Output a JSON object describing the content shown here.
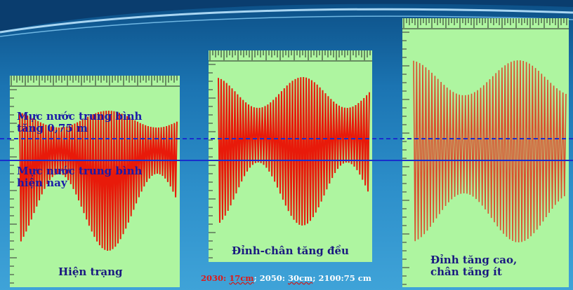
{
  "colors": {
    "background": "#1b74b2",
    "panel": "#aef5a0",
    "wave": "#e81a0a",
    "line": "#1a2ecc",
    "label": "#1a1aa8"
  },
  "panels": [
    {
      "caption": "Hiện trạng"
    },
    {
      "caption": "Đỉnh-chân tăng đều"
    },
    {
      "caption_line1": "Đỉnh tăng cao,",
      "caption_line2": "chân tăng ít"
    }
  ],
  "levels": {
    "raised_line1": "Mực nước trung bình",
    "raised_line2": "tăng 0,75 m",
    "current_line1": "Mực nước trung bình",
    "current_line2": "hiện nay"
  },
  "footer": {
    "y2030": "2030:",
    "v2030": "17cm",
    "sep1": ";",
    "y2050": "2050:",
    "v2050": "30cm",
    "sep2": ";",
    "rest": "2100:75 cm"
  }
}
